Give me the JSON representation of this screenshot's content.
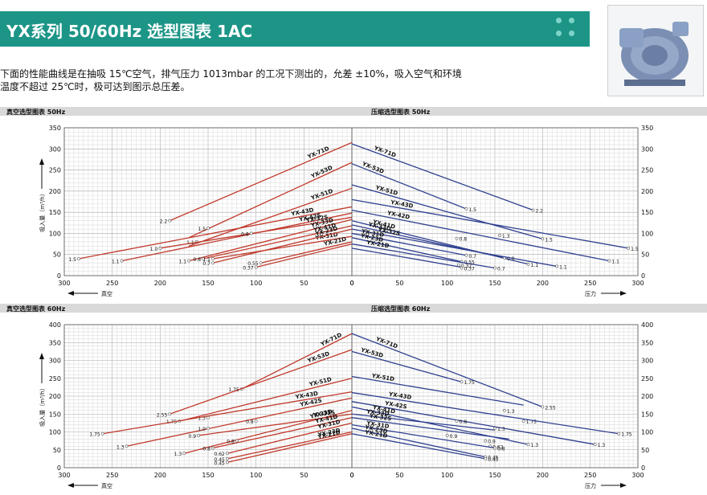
{
  "header": {
    "title": "YX系列 50/60Hz 选型图表 1AC"
  },
  "description": {
    "line1": "下面的性能曲线是在抽吸 15℃空气，排气压力 1013mbar 的工况下测出的，允差 ±10%，吸入空气和环境",
    "line2": "温度不超过 25℃时，极可达到图示总压差。"
  },
  "colors": {
    "banner": "#1c9587",
    "vacuum_curve": "#c0392b",
    "pressure_curve": "#2e3f8f",
    "grid": "#bbbbbb"
  },
  "chart_data": [
    {
      "id": "vac50",
      "type": "line",
      "title": "真空选型图表 50Hz",
      "ylabel": "吸入量（m³/h）",
      "xlabel": "真空",
      "xlim": [
        300,
        0
      ],
      "ylim": [
        0,
        350
      ],
      "xticks": [
        300,
        250,
        200,
        150,
        100,
        50,
        0
      ],
      "yticks": [
        0,
        50,
        100,
        150,
        200,
        250,
        300,
        350
      ],
      "series": [
        {
          "name": "YX-71D",
          "x": [
            190,
            0
          ],
          "y": [
            130,
            315
          ],
          "labels": [
            {
              "text": "2.2",
              "x": 190,
              "y": 130
            }
          ]
        },
        {
          "name": "YX-53D",
          "x": [
            170,
            0
          ],
          "y": [
            90,
            268
          ],
          "labels": [
            {
              "text": "1.5",
              "x": 150,
              "y": 112
            }
          ]
        },
        {
          "name": "YX-51D",
          "x": [
            170,
            0
          ],
          "y": [
            70,
            207
          ],
          "labels": [
            {
              "text": "1.1",
              "x": 162,
              "y": 80
            }
          ]
        },
        {
          "name": "YX-43D",
          "x": [
            285,
            0
          ],
          "y": [
            40,
            163
          ],
          "labels": [
            {
              "text": "1.5",
              "x": 285,
              "y": 40
            }
          ]
        },
        {
          "name": "YX-42S",
          "x": [
            240,
            0
          ],
          "y": [
            35,
            148
          ],
          "labels": [
            {
              "text": "1.1",
              "x": 240,
              "y": 35
            }
          ]
        },
        {
          "name": "YX-32S",
          "x": [
            200,
            0
          ],
          "y": [
            65,
            138
          ],
          "labels": [
            {
              "text": "1.0",
              "x": 200,
              "y": 65
            },
            {
              "text": "0.8",
              "x": 105,
              "y": 100
            }
          ]
        },
        {
          "name": "YX-33D",
          "x": [
            170,
            0
          ],
          "y": [
            35,
            133
          ],
          "labels": [
            {
              "text": "1.1",
              "x": 170,
              "y": 35
            }
          ]
        },
        {
          "name": "YX-41D",
          "x": [
            155,
            0
          ],
          "y": [
            40,
            118
          ],
          "labels": [
            {
              "text": "0.8",
              "x": 155,
              "y": 40
            }
          ]
        },
        {
          "name": "YX-31D",
          "x": [
            145,
            0
          ],
          "y": [
            40,
            93
          ],
          "labels": [
            {
              "text": "1.1",
              "x": 145,
              "y": 40
            }
          ]
        },
        {
          "name": "YX-23D",
          "x": [
            145,
            0
          ],
          "y": [
            30,
            110
          ],
          "labels": [
            {
              "text": "0.7",
              "x": 145,
              "y": 30
            }
          ]
        },
        {
          "name": "YX-21D",
          "x": [
            95,
            0
          ],
          "y": [
            30,
            80
          ],
          "labels": [
            {
              "text": "0.55",
              "x": 95,
              "y": 30
            }
          ]
        },
        {
          "name": "",
          "x": [
            100,
            0
          ],
          "y": [
            20,
            75
          ],
          "labels": [
            {
              "text": "0.37",
              "x": 100,
              "y": 20
            }
          ]
        }
      ]
    },
    {
      "id": "pre50",
      "type": "line",
      "title": "压缩选型图表 50Hz",
      "xlabel": "压力",
      "xlim": [
        0,
        300
      ],
      "ylim": [
        0,
        350
      ],
      "xticks": [
        0,
        50,
        100,
        150,
        200,
        250,
        300
      ],
      "yticks": [
        0,
        50,
        100,
        150,
        200,
        250,
        300,
        350
      ],
      "series": [
        {
          "name": "YX-71D",
          "x": [
            0,
            190
          ],
          "y": [
            312,
            155
          ],
          "labels": [
            {
              "text": "2.2",
              "x": 190,
              "y": 155
            }
          ]
        },
        {
          "name": "YX-53D",
          "x": [
            0,
            120
          ],
          "y": [
            265,
            158
          ],
          "labels": [
            {
              "text": "1.5",
              "x": 120,
              "y": 158
            }
          ]
        },
        {
          "name": "YX-51D",
          "x": [
            0,
            200
          ],
          "y": [
            215,
            87
          ],
          "labels": [
            {
              "text": "1.5",
              "x": 200,
              "y": 87
            }
          ]
        },
        {
          "name": "YX-43D",
          "x": [
            0,
            290
          ],
          "y": [
            180,
            65
          ],
          "labels": [
            {
              "text": "1.5",
              "x": 290,
              "y": 65
            }
          ]
        },
        {
          "name": "YX-42D",
          "x": [
            0,
            270
          ],
          "y": [
            155,
            35
          ],
          "labels": [
            {
              "text": "1.1",
              "x": 270,
              "y": 35
            }
          ]
        },
        {
          "name": "YX-41D",
          "x": [
            0,
            185
          ],
          "y": [
            130,
            27
          ],
          "labels": [
            {
              "text": "1.1",
              "x": 185,
              "y": 27
            }
          ]
        },
        {
          "name": "YX-33D",
          "x": [
            0,
            160
          ],
          "y": [
            120,
            42
          ],
          "labels": [
            {
              "text": "1.3",
              "x": 155,
              "y": 95
            },
            {
              "text": "0.8",
              "x": 160,
              "y": 42
            }
          ]
        },
        {
          "name": "YX-32S",
          "x": [
            0,
            215
          ],
          "y": [
            110,
            22
          ],
          "labels": [
            {
              "text": "1.1",
              "x": 215,
              "y": 22
            }
          ]
        },
        {
          "name": "YX-31D",
          "x": [
            0,
            120
          ],
          "y": [
            100,
            48
          ],
          "labels": [
            {
              "text": "0.8",
              "x": 110,
              "y": 88
            },
            {
              "text": "0.7",
              "x": 120,
              "y": 48
            }
          ]
        },
        {
          "name": "YX-23D",
          "x": [
            0,
            115
          ],
          "y": [
            90,
            33
          ],
          "labels": [
            {
              "text": "0.55",
              "x": 115,
              "y": 33
            }
          ]
        },
        {
          "name": "YX-21D",
          "x": [
            0,
            150
          ],
          "y": [
            75,
            18
          ],
          "labels": [
            {
              "text": "0.7",
              "x": 150,
              "y": 18
            }
          ]
        },
        {
          "name": "",
          "x": [
            0,
            115
          ],
          "y": [
            65,
            20
          ],
          "labels": [
            {
              "text": "0.37",
              "x": 112,
              "y": 25
            },
            {
              "text": "0.37",
              "x": 115,
              "y": 18
            }
          ]
        }
      ]
    },
    {
      "id": "vac60",
      "type": "line",
      "title": "真空选型图表 60Hz",
      "ylabel": "吸入量（m³/h）",
      "xlabel": "真空",
      "xlim": [
        300,
        0
      ],
      "ylim": [
        0,
        400
      ],
      "xticks": [
        300,
        250,
        200,
        150,
        100,
        50,
        0
      ],
      "yticks": [
        0,
        50,
        100,
        150,
        200,
        250,
        300,
        350,
        400
      ],
      "series": [
        {
          "name": "YX-71D",
          "x": [
            115,
            0
          ],
          "y": [
            220,
            375
          ],
          "labels": [
            {
              "text": "1.75",
              "x": 115,
              "y": 220
            }
          ]
        },
        {
          "name": "YX-53D",
          "x": [
            190,
            0
          ],
          "y": [
            150,
            330
          ],
          "labels": [
            {
              "text": "2.55",
              "x": 190,
              "y": 150
            },
            {
              "text": "1.3",
              "x": 150,
              "y": 140
            }
          ]
        },
        {
          "name": "YX-51D",
          "x": [
            180,
            0
          ],
          "y": [
            130,
            250
          ],
          "labels": [
            {
              "text": "1.75",
              "x": 180,
              "y": 130
            }
          ]
        },
        {
          "name": "YX-43D",
          "x": [
            260,
            0
          ],
          "y": [
            95,
            212
          ],
          "labels": [
            {
              "text": "1.75",
              "x": 260,
              "y": 95
            }
          ]
        },
        {
          "name": "YX-42S",
          "x": [
            235,
            0
          ],
          "y": [
            60,
            195
          ],
          "labels": [
            {
              "text": "1.3",
              "x": 235,
              "y": 60
            }
          ]
        },
        {
          "name": "YX-33D",
          "x": [
            175,
            0
          ],
          "y": [
            40,
            160
          ],
          "labels": [
            {
              "text": "1.3",
              "x": 175,
              "y": 40
            },
            {
              "text": "0.8",
              "x": 100,
              "y": 130
            }
          ]
        },
        {
          "name": "YX-32S",
          "x": [
            160,
            0
          ],
          "y": [
            90,
            150
          ],
          "labels": [
            {
              "text": "0.9",
              "x": 160,
              "y": 90
            },
            {
              "text": "1.0",
              "x": 150,
              "y": 110
            }
          ]
        },
        {
          "name": "YX-41D",
          "x": [
            145,
            0
          ],
          "y": [
            55,
            140
          ],
          "labels": [
            {
              "text": "0.8",
              "x": 145,
              "y": 55
            },
            {
              "text": "0.8",
              "x": 120,
              "y": 75
            }
          ]
        },
        {
          "name": "YX-31D",
          "x": [
            130,
            0
          ],
          "y": [
            40,
            125
          ],
          "labels": [
            {
              "text": "0.62",
              "x": 130,
              "y": 40
            }
          ]
        },
        {
          "name": "YX-23D",
          "x": [
            130,
            0
          ],
          "y": [
            25,
            100
          ],
          "labels": [
            {
              "text": "0.45",
              "x": 130,
              "y": 25
            }
          ]
        },
        {
          "name": "YX-21D",
          "x": [
            130,
            0
          ],
          "y": [
            15,
            95
          ],
          "labels": [
            {
              "text": "0.45",
              "x": 130,
              "y": 15
            }
          ]
        }
      ]
    },
    {
      "id": "pre60",
      "type": "line",
      "title": "压缩选型图表 60Hz",
      "xlabel": "压力",
      "xlim": [
        0,
        300
      ],
      "ylim": [
        0,
        400
      ],
      "xticks": [
        0,
        50,
        100,
        150,
        200,
        250,
        300
      ],
      "yticks": [
        0,
        50,
        100,
        150,
        200,
        250,
        300,
        350,
        400
      ],
      "series": [
        {
          "name": "YX-71D",
          "x": [
            0,
            200
          ],
          "y": [
            375,
            170
          ],
          "labels": [
            {
              "text": "2.55",
              "x": 200,
              "y": 170
            }
          ]
        },
        {
          "name": "YX-53D",
          "x": [
            0,
            115
          ],
          "y": [
            325,
            240
          ],
          "labels": [
            {
              "text": "1.75",
              "x": 115,
              "y": 240
            }
          ]
        },
        {
          "name": "YX-51D",
          "x": [
            0,
            180
          ],
          "y": [
            255,
            175
          ],
          "labels": [
            {
              "text": "1.3",
              "x": 160,
              "y": 160
            },
            {
              "text": "1.75",
              "x": 180,
              "y": 130
            }
          ]
        },
        {
          "name": "YX-43D",
          "x": [
            0,
            280
          ],
          "y": [
            210,
            95
          ],
          "labels": [
            {
              "text": "1.75",
              "x": 280,
              "y": 95
            }
          ]
        },
        {
          "name": "YX-42S",
          "x": [
            0,
            255
          ],
          "y": [
            185,
            65
          ],
          "labels": [
            {
              "text": "1.3",
              "x": 255,
              "y": 65
            }
          ]
        },
        {
          "name": "YX-41D",
          "x": [
            0,
            185
          ],
          "y": [
            170,
            65
          ],
          "labels": [
            {
              "text": "1.3",
              "x": 185,
              "y": 65
            }
          ]
        },
        {
          "name": "YX-33D",
          "x": [
            0,
            150
          ],
          "y": [
            150,
            105
          ],
          "labels": [
            {
              "text": "0.8",
              "x": 110,
              "y": 130
            },
            {
              "text": "1.3",
              "x": 150,
              "y": 110
            }
          ]
        },
        {
          "name": "YX-32S",
          "x": [
            0,
            165
          ],
          "y": [
            140,
            80
          ],
          "labels": [
            {
              "text": "0.9",
              "x": 140,
              "y": 75
            },
            {
              "text": "0.62",
              "x": 145,
              "y": 60
            }
          ]
        },
        {
          "name": "YX-31D",
          "x": [
            0,
            150
          ],
          "y": [
            120,
            55
          ],
          "labels": [
            {
              "text": "0.8",
              "x": 150,
              "y": 55
            }
          ]
        },
        {
          "name": "YX-23D",
          "x": [
            0,
            140
          ],
          "y": [
            110,
            30
          ],
          "labels": [
            {
              "text": "0.9",
              "x": 100,
              "y": 90
            },
            {
              "text": "0.45",
              "x": 140,
              "y": 30
            }
          ]
        },
        {
          "name": "YX-21D",
          "x": [
            0,
            140
          ],
          "y": [
            95,
            25
          ],
          "labels": [
            {
              "text": "0.45",
              "x": 140,
              "y": 25
            }
          ]
        }
      ]
    }
  ]
}
